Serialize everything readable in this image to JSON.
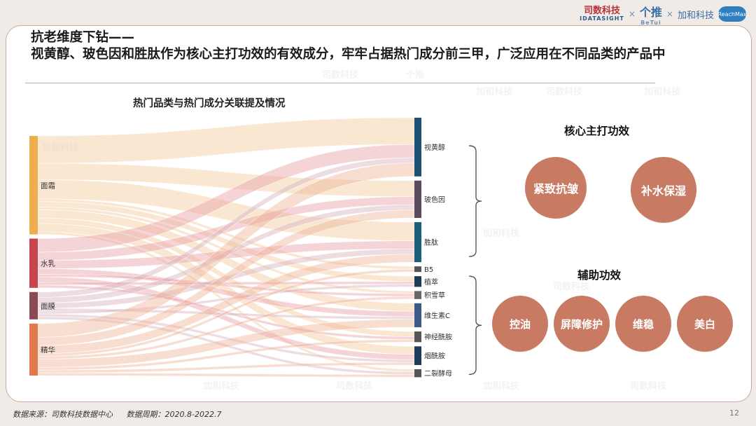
{
  "header": {
    "logo_brand": "司数科技",
    "logo_brand_en": "IDATASIGHT",
    "logo_tui": "个推",
    "logo_tui_en": "BeTui",
    "logo_jiahe": "加和科技",
    "logo_reachmax": "ReachMax",
    "separator": "×"
  },
  "title": {
    "line1": "抗老维度下钻——",
    "line2": "视黄醇、玻色因和胜肽作为核心主打功效的有效成分，牢牢占据热门成分前三甲，广泛应用在不同品类的产品中"
  },
  "chart_data": {
    "type": "sankey",
    "title": "热门品类与热门成分关联提及情况",
    "sources": [
      {
        "name": "面霜",
        "value": 36,
        "color": "#eeae4e"
      },
      {
        "name": "水乳",
        "value": 18,
        "color": "#c8454e"
      },
      {
        "name": "面膜",
        "value": 10,
        "color": "#8a4a55"
      },
      {
        "name": "精华",
        "value": 19,
        "color": "#e07a4e"
      }
    ],
    "targets": [
      {
        "name": "视黄醇",
        "value": 22,
        "color": "#1e4f72"
      },
      {
        "name": "玻色因",
        "value": 14,
        "color": "#5b4a60"
      },
      {
        "name": "胜肽",
        "value": 15,
        "color": "#1b5e78"
      },
      {
        "name": "B5",
        "value": 2,
        "color": "#555555"
      },
      {
        "name": "植萃",
        "value": 4,
        "color": "#1e3a5a"
      },
      {
        "name": "积雪草",
        "value": 3,
        "color": "#666666"
      },
      {
        "name": "维生素C",
        "value": 9,
        "color": "#3a5a85"
      },
      {
        "name": "神经酰胺",
        "value": 4,
        "color": "#555555"
      },
      {
        "name": "烟酰胺",
        "value": 7,
        "color": "#1e3a5a"
      },
      {
        "name": "二裂酵母",
        "value": 3,
        "color": "#555555"
      }
    ],
    "links": [
      {
        "source": "面霜",
        "target": "视黄醇",
        "value": 10
      },
      {
        "source": "面霜",
        "target": "玻色因",
        "value": 6
      },
      {
        "source": "面霜",
        "target": "胜肽",
        "value": 7
      },
      {
        "source": "面霜",
        "target": "B5",
        "value": 1
      },
      {
        "source": "面霜",
        "target": "植萃",
        "value": 2
      },
      {
        "source": "面霜",
        "target": "积雪草",
        "value": 1
      },
      {
        "source": "面霜",
        "target": "维生素C",
        "value": 3
      },
      {
        "source": "面霜",
        "target": "神经酰胺",
        "value": 2
      },
      {
        "source": "面霜",
        "target": "烟酰胺",
        "value": 3
      },
      {
        "source": "面霜",
        "target": "二裂酵母",
        "value": 1
      },
      {
        "source": "水乳",
        "target": "视黄醇",
        "value": 5
      },
      {
        "source": "水乳",
        "target": "玻色因",
        "value": 3
      },
      {
        "source": "水乳",
        "target": "胜肽",
        "value": 3
      },
      {
        "source": "水乳",
        "target": "维生素C",
        "value": 2
      },
      {
        "source": "水乳",
        "target": "积雪草",
        "value": 1
      },
      {
        "source": "水乳",
        "target": "烟酰胺",
        "value": 2
      },
      {
        "source": "水乳",
        "target": "植萃",
        "value": 1
      },
      {
        "source": "水乳",
        "target": "神经酰胺",
        "value": 1
      },
      {
        "source": "面膜",
        "target": "视黄醇",
        "value": 2
      },
      {
        "source": "面膜",
        "target": "玻色因",
        "value": 2
      },
      {
        "source": "面膜",
        "target": "胜肽",
        "value": 2
      },
      {
        "source": "面膜",
        "target": "维生素C",
        "value": 1
      },
      {
        "source": "面膜",
        "target": "植萃",
        "value": 1
      },
      {
        "source": "面膜",
        "target": "烟酰胺",
        "value": 1
      },
      {
        "source": "面膜",
        "target": "二裂酵母",
        "value": 1
      },
      {
        "source": "精华",
        "target": "视黄醇",
        "value": 5
      },
      {
        "source": "精华",
        "target": "玻色因",
        "value": 3
      },
      {
        "source": "精华",
        "target": "胜肽",
        "value": 3
      },
      {
        "source": "精华",
        "target": "B5",
        "value": 1
      },
      {
        "source": "精华",
        "target": "积雪草",
        "value": 1
      },
      {
        "source": "精华",
        "target": "维生素C",
        "value": 3
      },
      {
        "source": "精华",
        "target": "神经酰胺",
        "value": 1
      },
      {
        "source": "精华",
        "target": "烟酰胺",
        "value": 1
      },
      {
        "source": "精华",
        "target": "二裂酵母",
        "value": 1
      }
    ]
  },
  "core_effects": {
    "title": "核心主打功效",
    "items": [
      "紧致抗皱",
      "补水保湿"
    ]
  },
  "aux_effects": {
    "title": "辅助功效",
    "items": [
      "控油",
      "屏障修护",
      "维稳",
      "美白"
    ]
  },
  "colors": {
    "bubble": "#c97a63",
    "title_rule": "#c9a8a4"
  },
  "footer": {
    "source": "数据来源：司数科技数据中心",
    "period": "数据周期：2020.8-2022.7",
    "page_number": "12"
  }
}
